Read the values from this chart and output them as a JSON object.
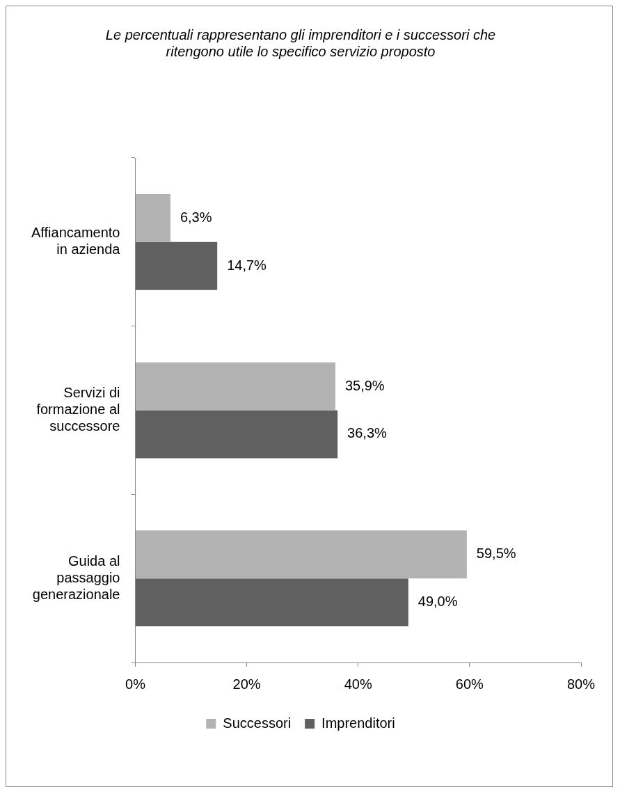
{
  "chart_data": {
    "type": "bar",
    "orientation": "horizontal",
    "title": "Le percentuali rappresentano gli imprenditori e i successori che ritengono utile lo specifico servizio proposto",
    "categories": [
      "Affiancamento in azienda",
      "Servizi di formazione al successore",
      "Guida al passaggio generazionale"
    ],
    "series": [
      {
        "name": "Successori",
        "color": "#b3b3b3",
        "values": [
          6.3,
          35.9,
          59.5
        ],
        "value_labels": [
          "6,3%",
          "35,9%",
          "59,5%"
        ]
      },
      {
        "name": "Imprenditori",
        "color": "#606060",
        "values": [
          14.7,
          36.3,
          49.0
        ],
        "value_labels": [
          "14,7%",
          "36,3%",
          "49,0%"
        ]
      }
    ],
    "xlim": [
      0,
      80
    ],
    "xticks": [
      {
        "value": 0,
        "label": "0%"
      },
      {
        "value": 20,
        "label": "20%"
      },
      {
        "value": 40,
        "label": "40%"
      },
      {
        "value": 60,
        "label": "60%"
      },
      {
        "value": 80,
        "label": "80%"
      }
    ],
    "legend": "bottom"
  }
}
